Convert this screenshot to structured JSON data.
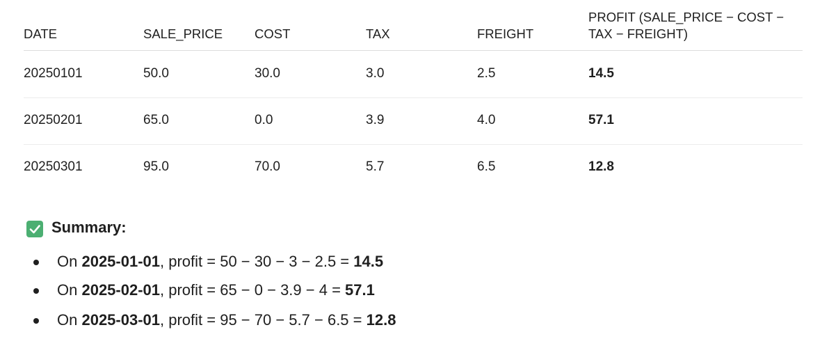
{
  "table": {
    "headers": [
      "DATE",
      "SALE_PRICE",
      "COST",
      "TAX",
      "FREIGHT",
      "PROFIT (SALE_PRICE − COST − TAX − FREIGHT)"
    ],
    "rows": [
      [
        "20250101",
        "50.0",
        "30.0",
        "3.0",
        "2.5",
        "14.5"
      ],
      [
        "20250201",
        "65.0",
        "0.0",
        "3.9",
        "4.0",
        "57.1"
      ],
      [
        "20250301",
        "95.0",
        "70.0",
        "5.7",
        "6.5",
        "12.8"
      ]
    ]
  },
  "summary": {
    "title": "Summary:",
    "items": [
      {
        "prefix": "On ",
        "date": "2025-01-01",
        "expression": ", profit = 50 − 30 − 3 − 2.5 = ",
        "result": "14.5"
      },
      {
        "prefix": "On ",
        "date": "2025-02-01",
        "expression": ", profit = 65 − 0 − 3.9 − 4 = ",
        "result": "57.1"
      },
      {
        "prefix": "On ",
        "date": "2025-03-01",
        "expression": ", profit = 95 − 70 − 5.7 − 6.5 = ",
        "result": "12.8"
      }
    ]
  }
}
